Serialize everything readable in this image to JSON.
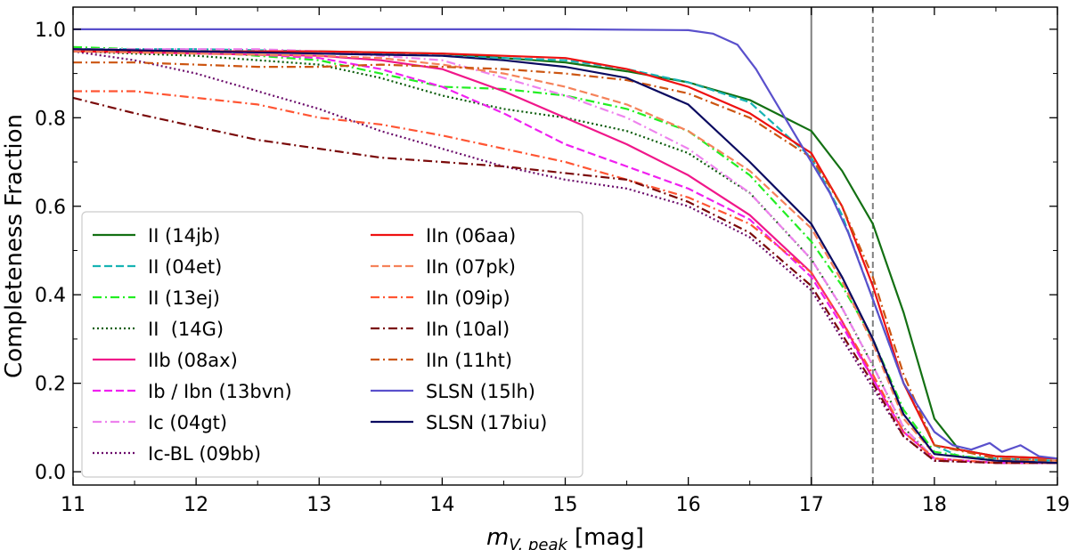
{
  "chart_data": {
    "type": "line",
    "title": "",
    "xlabel": "[mag]",
    "xlabel_math": "m",
    "xlabel_sub": "V, peak",
    "ylabel": "Completeness Fraction",
    "xlim": [
      11,
      19
    ],
    "ylim": [
      -0.03,
      1.05
    ],
    "xticks": [
      "11",
      "12",
      "13",
      "14",
      "15",
      "16",
      "17",
      "18",
      "19"
    ],
    "yticks": [
      "0.0",
      "0.2",
      "0.4",
      "0.6",
      "0.8",
      "1.0"
    ],
    "grid": false,
    "legend_position": "lower-left",
    "vlines": [
      {
        "x": 17.0,
        "style": "solid",
        "color": "#808080"
      },
      {
        "x": 17.5,
        "style": "dashed",
        "color": "#808080"
      }
    ],
    "series": [
      {
        "name": "II (14jb)",
        "color": "#137013",
        "dash": "solid",
        "x": [
          11,
          12,
          13,
          14,
          15,
          15.5,
          16,
          16.5,
          17,
          17.25,
          17.5,
          17.75,
          18,
          18.2,
          18.5,
          19
        ],
        "y": [
          0.95,
          0.95,
          0.95,
          0.945,
          0.925,
          0.905,
          0.88,
          0.84,
          0.77,
          0.68,
          0.56,
          0.36,
          0.12,
          0.05,
          0.035,
          0.03
        ]
      },
      {
        "name": "II (04et)",
        "color": "#17b3b3",
        "dash": "dashed",
        "x": [
          11,
          12,
          13,
          14,
          15,
          15.5,
          16,
          16.5,
          17,
          17.25,
          17.5,
          17.75,
          18,
          18.2,
          18.5,
          19
        ],
        "y": [
          0.955,
          0.955,
          0.95,
          0.94,
          0.93,
          0.91,
          0.88,
          0.835,
          0.71,
          0.58,
          0.39,
          0.2,
          0.06,
          0.035,
          0.03,
          0.025
        ]
      },
      {
        "name": "II (13ej)",
        "color": "#22ee22",
        "dash": "dashdot",
        "x": [
          11,
          12,
          13,
          13.5,
          14,
          14.5,
          15,
          15.5,
          16,
          16.5,
          17,
          17.25,
          17.5,
          17.75,
          18,
          18.5,
          19
        ],
        "y": [
          0.96,
          0.95,
          0.93,
          0.9,
          0.87,
          0.865,
          0.85,
          0.82,
          0.77,
          0.67,
          0.52,
          0.42,
          0.3,
          0.14,
          0.045,
          0.025,
          0.02
        ]
      },
      {
        "name": "II  (14G)",
        "color": "#0b5c0b",
        "dash": "dotted",
        "x": [
          11,
          12,
          13,
          13.5,
          14,
          14.5,
          15,
          15.5,
          16,
          16.5,
          17,
          17.25,
          17.5,
          17.75,
          18,
          18.5,
          19
        ],
        "y": [
          0.95,
          0.94,
          0.92,
          0.89,
          0.85,
          0.82,
          0.8,
          0.77,
          0.72,
          0.63,
          0.48,
          0.37,
          0.24,
          0.1,
          0.03,
          0.02,
          0.02
        ]
      },
      {
        "name": "IIb (08ax)",
        "color": "#f0178a",
        "dash": "solid",
        "x": [
          11,
          12,
          13,
          13.5,
          14,
          14.5,
          15,
          15.5,
          16,
          16.5,
          17,
          17.25,
          17.5,
          17.75,
          18,
          18.5,
          19
        ],
        "y": [
          0.95,
          0.945,
          0.94,
          0.93,
          0.91,
          0.86,
          0.8,
          0.74,
          0.67,
          0.58,
          0.45,
          0.34,
          0.21,
          0.09,
          0.03,
          0.02,
          0.02
        ]
      },
      {
        "name": "Ib / Ibn (13bvn)",
        "color": "#f020f0",
        "dash": "dashed",
        "x": [
          11,
          12,
          13,
          13.5,
          14,
          14.5,
          15,
          15.5,
          16,
          16.5,
          17,
          17.25,
          17.5,
          17.75,
          18,
          18.5,
          19
        ],
        "y": [
          0.955,
          0.95,
          0.935,
          0.91,
          0.87,
          0.81,
          0.74,
          0.69,
          0.64,
          0.57,
          0.44,
          0.33,
          0.21,
          0.09,
          0.03,
          0.02,
          0.02
        ]
      },
      {
        "name": "Ic (04gt)",
        "color": "#ee82ee",
        "dash": "dashdot",
        "x": [
          11,
          12,
          12.5,
          13,
          14,
          15,
          15.5,
          16,
          16.5,
          17,
          17.25,
          17.5,
          17.75,
          18,
          18.5,
          19
        ],
        "y": [
          0.955,
          0.955,
          0.955,
          0.95,
          0.93,
          0.85,
          0.8,
          0.73,
          0.63,
          0.48,
          0.37,
          0.24,
          0.1,
          0.03,
          0.02,
          0.02
        ]
      },
      {
        "name": "Ic-BL (09bb)",
        "color": "#6a0a6a",
        "dash": "dotted",
        "x": [
          11,
          11.5,
          12,
          12.5,
          13,
          13.5,
          14,
          14.5,
          15,
          15.5,
          16,
          16.5,
          17,
          17.25,
          17.5,
          17.75,
          18,
          18.5,
          19
        ],
        "y": [
          0.95,
          0.93,
          0.9,
          0.86,
          0.82,
          0.77,
          0.73,
          0.69,
          0.66,
          0.64,
          0.6,
          0.53,
          0.41,
          0.3,
          0.19,
          0.08,
          0.025,
          0.02,
          0.02
        ]
      },
      {
        "name": "IIn (06aa)",
        "color": "#ee1111",
        "dash": "solid",
        "x": [
          11,
          12,
          13,
          14,
          15,
          15.5,
          16,
          16.5,
          17,
          17.25,
          17.5,
          17.75,
          18,
          18.5,
          19
        ],
        "y": [
          0.95,
          0.95,
          0.95,
          0.945,
          0.935,
          0.91,
          0.87,
          0.81,
          0.72,
          0.6,
          0.42,
          0.2,
          0.06,
          0.035,
          0.03
        ]
      },
      {
        "name": "IIn (07pk)",
        "color": "#f5825a",
        "dash": "dashed",
        "x": [
          11,
          12,
          13,
          13.5,
          14,
          14.5,
          15,
          15.5,
          16,
          16.5,
          17,
          17.25,
          17.5,
          17.75,
          18,
          18.5,
          19
        ],
        "y": [
          0.95,
          0.945,
          0.94,
          0.935,
          0.92,
          0.9,
          0.87,
          0.83,
          0.77,
          0.68,
          0.55,
          0.43,
          0.29,
          0.12,
          0.04,
          0.025,
          0.025
        ]
      },
      {
        "name": "IIn (09ip)",
        "color": "#ff5533",
        "dash": "dashdot",
        "x": [
          11,
          11.5,
          12,
          12.5,
          13,
          13.5,
          14,
          14.5,
          15,
          15.5,
          16,
          16.5,
          17,
          17.25,
          17.5,
          17.75,
          18,
          18.5,
          19
        ],
        "y": [
          0.86,
          0.86,
          0.845,
          0.83,
          0.8,
          0.785,
          0.76,
          0.73,
          0.7,
          0.66,
          0.62,
          0.56,
          0.45,
          0.34,
          0.22,
          0.09,
          0.03,
          0.02,
          0.02
        ]
      },
      {
        "name": "IIn (10al)",
        "color": "#7a0a0a",
        "dash": "dashdot",
        "x": [
          11,
          11.5,
          12,
          12.5,
          13,
          13.5,
          14,
          14.5,
          15,
          15.5,
          16,
          16.5,
          17,
          17.25,
          17.5,
          17.75,
          18,
          18.5,
          19
        ],
        "y": [
          0.845,
          0.81,
          0.78,
          0.75,
          0.73,
          0.71,
          0.7,
          0.69,
          0.675,
          0.66,
          0.61,
          0.54,
          0.42,
          0.31,
          0.2,
          0.08,
          0.025,
          0.02,
          0.02
        ]
      },
      {
        "name": "IIn (11ht)",
        "color": "#cc5511",
        "dash": "dashdot",
        "x": [
          11,
          11.5,
          12,
          12.5,
          13,
          13.5,
          14,
          14.5,
          15,
          15.5,
          16,
          16.5,
          17,
          17.25,
          17.5,
          17.75,
          18,
          18.5,
          19
        ],
        "y": [
          0.925,
          0.925,
          0.92,
          0.915,
          0.915,
          0.92,
          0.915,
          0.91,
          0.9,
          0.885,
          0.855,
          0.8,
          0.71,
          0.6,
          0.44,
          0.22,
          0.06,
          0.03,
          0.025
        ]
      },
      {
        "name": "SLSN (15lh)",
        "color": "#5a50cc",
        "dash": "solid",
        "x": [
          11,
          12,
          13,
          14,
          15,
          16,
          16.2,
          16.4,
          16.55,
          16.7,
          16.85,
          17,
          17.15,
          17.3,
          17.5,
          17.75,
          18,
          18.15,
          18.3,
          18.45,
          18.55,
          18.7,
          18.85,
          19
        ],
        "y": [
          1.0,
          1.0,
          1.0,
          1.0,
          1.0,
          0.998,
          0.99,
          0.965,
          0.91,
          0.84,
          0.77,
          0.7,
          0.63,
          0.54,
          0.39,
          0.2,
          0.09,
          0.06,
          0.05,
          0.065,
          0.045,
          0.06,
          0.035,
          0.03
        ]
      },
      {
        "name": "SLSN (17biu)",
        "color": "#0a0a60",
        "dash": "solid",
        "x": [
          11,
          12,
          13,
          14,
          14.5,
          15,
          15.5,
          16,
          16.5,
          17,
          17.25,
          17.5,
          17.75,
          18,
          18.5,
          19
        ],
        "y": [
          0.955,
          0.95,
          0.945,
          0.94,
          0.93,
          0.915,
          0.89,
          0.83,
          0.7,
          0.56,
          0.44,
          0.3,
          0.13,
          0.04,
          0.025,
          0.02
        ]
      }
    ]
  }
}
